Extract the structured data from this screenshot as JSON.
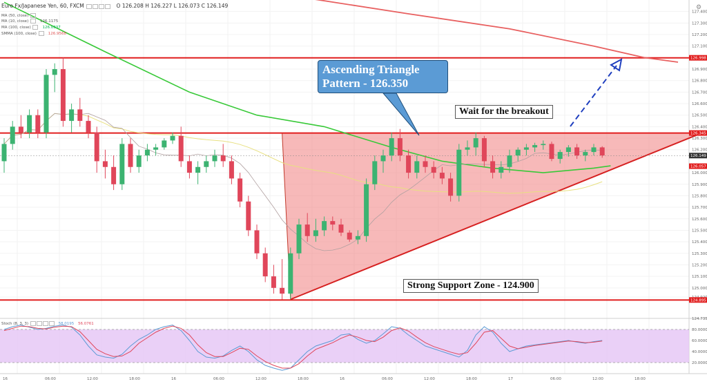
{
  "header": {
    "symbol_line": "Euro Fx/Japanese Yen, 60, FXCM",
    "ohlc": "O 126.208  H 126.227  L 126.073  C 126.149"
  },
  "legend": [
    {
      "label": "MA (50, close)",
      "value": "",
      "color": "#aaaaaa"
    },
    {
      "label": "MA (10, close)",
      "value": "126.1175",
      "color": "#9e9e9e"
    },
    {
      "label": "MA (100, close)",
      "value": "126.0337",
      "color": "#00b050"
    },
    {
      "label": "SMMA (100, close)",
      "value": "126.9568",
      "color": "#e05555"
    }
  ],
  "oscillator_header": {
    "label": "Stoch (8, 3, 3)",
    "k": "58.0195",
    "d": "56.0761"
  },
  "annotations": {
    "callout": "Ascending Triangle Pattern - 126.350",
    "wait": "Wait for the breakout",
    "support": "Strong Support Zone - 124.900"
  },
  "icons": {
    "settings": "gear-icon"
  },
  "colors": {
    "up": "#3cb371",
    "down": "#e0465a",
    "hline": "#e11d1d",
    "triangle": "#f08080",
    "ma_green": "#38c938",
    "ma_yellow": "#e8e080",
    "ma_gray": "#b0a0a0",
    "smma_red": "#e86060",
    "stoch_fill": "#e6c8f6",
    "stoch_k": "#5b9bd5",
    "stoch_d": "#e0465a",
    "arrow": "#1f3fbf"
  },
  "chart_data": [
    {
      "type": "candlestick",
      "title": "Euro Fx/Japanese Yen, 60, FXCM",
      "ylim": [
        124.735,
        127.5
      ],
      "y_ticks": [
        127.4,
        127.3,
        127.2,
        127.1,
        126.9,
        126.8,
        126.7,
        126.6,
        126.5,
        126.4,
        126.3,
        126.2,
        126.0,
        125.9,
        125.8,
        125.7,
        125.6,
        125.5,
        125.4,
        125.3,
        125.2,
        125.1,
        125.0,
        124.92,
        124.735
      ],
      "x_ticks": [
        "16",
        "06:00",
        "12:00",
        "18:00",
        "16",
        "06:00",
        "12:00",
        "18:00",
        "16",
        "06:00",
        "12:00",
        "18:00",
        "17",
        "06:00",
        "12:00",
        "18:00"
      ],
      "price_tags": [
        {
          "text": "126.998",
          "y": 126.998,
          "color": "#e11d1d"
        },
        {
          "text": "126.345",
          "y": 126.345,
          "color": "#e11d1d"
        },
        {
          "text": "126.149",
          "y": 126.149,
          "color": "#333333"
        },
        {
          "text": "126.057",
          "y": 126.057,
          "color": "#e11d1d"
        },
        {
          "text": "124.895",
          "y": 124.895,
          "color": "#e11d1d"
        }
      ],
      "levels": [
        126.998,
        126.345,
        124.895
      ],
      "triangle": {
        "top": 126.345,
        "apex_bar": 82,
        "low_bar": 34,
        "low": 124.9
      },
      "candles": [
        [
          126.1,
          126.3,
          126.0,
          126.25
        ],
        [
          126.25,
          126.45,
          126.2,
          126.4
        ],
        [
          126.4,
          126.5,
          126.3,
          126.35
        ],
        [
          126.35,
          126.55,
          126.3,
          126.5
        ],
        [
          126.5,
          126.55,
          126.3,
          126.35
        ],
        [
          126.35,
          126.9,
          126.3,
          126.85
        ],
        [
          126.85,
          126.95,
          126.7,
          126.9
        ],
        [
          126.9,
          127.0,
          126.4,
          126.45
        ],
        [
          126.45,
          126.6,
          126.35,
          126.55
        ],
        [
          126.55,
          126.65,
          126.4,
          126.45
        ],
        [
          126.45,
          126.5,
          126.3,
          126.35
        ],
        [
          126.35,
          126.4,
          126.0,
          126.1
        ],
        [
          126.1,
          126.2,
          125.95,
          126.05
        ],
        [
          126.05,
          126.15,
          125.85,
          125.9
        ],
        [
          125.9,
          126.3,
          125.85,
          126.25
        ],
        [
          126.25,
          126.3,
          126.0,
          126.05
        ],
        [
          126.05,
          126.2,
          126.0,
          126.15
        ],
        [
          126.15,
          126.25,
          126.1,
          126.2
        ],
        [
          126.2,
          126.25,
          126.15,
          126.22
        ],
        [
          126.22,
          126.3,
          126.2,
          126.28
        ],
        [
          126.28,
          126.35,
          126.25,
          126.32
        ],
        [
          126.32,
          126.4,
          126.05,
          126.1
        ],
        [
          126.1,
          126.15,
          125.95,
          126.0
        ],
        [
          126.0,
          126.1,
          125.9,
          126.05
        ],
        [
          126.05,
          126.15,
          126.0,
          126.1
        ],
        [
          126.1,
          126.2,
          126.05,
          126.15
        ],
        [
          126.15,
          126.25,
          126.05,
          126.1
        ],
        [
          126.1,
          126.15,
          125.9,
          125.95
        ],
        [
          125.95,
          126.0,
          125.7,
          125.75
        ],
        [
          125.75,
          125.8,
          125.45,
          125.5
        ],
        [
          125.5,
          125.55,
          125.25,
          125.3
        ],
        [
          125.3,
          125.35,
          125.05,
          125.1
        ],
        [
          125.1,
          125.2,
          124.95,
          125.0
        ],
        [
          125.0,
          125.25,
          124.9,
          124.95
        ],
        [
          124.95,
          125.35,
          124.9,
          125.3
        ],
        [
          125.3,
          125.6,
          125.25,
          125.55
        ],
        [
          125.55,
          125.65,
          125.4,
          125.45
        ],
        [
          125.45,
          125.6,
          125.4,
          125.5
        ],
        [
          125.5,
          125.62,
          125.45,
          125.58
        ],
        [
          125.58,
          125.62,
          125.5,
          125.55
        ],
        [
          125.55,
          125.6,
          125.45,
          125.48
        ],
        [
          125.48,
          125.5,
          125.4,
          125.42
        ],
        [
          125.42,
          125.5,
          125.38,
          125.45
        ],
        [
          125.45,
          125.95,
          125.4,
          125.9
        ],
        [
          125.9,
          126.15,
          125.85,
          126.1
        ],
        [
          126.1,
          126.2,
          126.0,
          126.15
        ],
        [
          126.15,
          126.35,
          126.1,
          126.3
        ],
        [
          126.3,
          126.38,
          126.1,
          126.15
        ],
        [
          126.15,
          126.2,
          125.95,
          126.0
        ],
        [
          126.0,
          126.15,
          125.95,
          126.1
        ],
        [
          126.1,
          126.15,
          126.0,
          126.05
        ],
        [
          126.05,
          126.1,
          125.95,
          126.0
        ],
        [
          126.0,
          126.05,
          125.9,
          125.95
        ],
        [
          125.95,
          126.0,
          125.75,
          125.8
        ],
        [
          125.8,
          126.25,
          125.75,
          126.2
        ],
        [
          126.2,
          126.28,
          126.15,
          126.22
        ],
        [
          126.22,
          126.35,
          126.15,
          126.3
        ],
        [
          126.3,
          126.32,
          126.05,
          126.1
        ],
        [
          126.1,
          126.15,
          125.95,
          126.0
        ],
        [
          126.0,
          126.1,
          125.95,
          126.05
        ],
        [
          126.05,
          126.2,
          126.0,
          126.15
        ],
        [
          126.15,
          126.22,
          126.1,
          126.2
        ],
        [
          126.2,
          126.25,
          126.15,
          126.22
        ],
        [
          126.22,
          126.26,
          126.18,
          126.24
        ],
        [
          126.24,
          126.28,
          126.2,
          126.25
        ],
        [
          126.25,
          126.27,
          126.1,
          126.12
        ],
        [
          126.12,
          126.2,
          126.08,
          126.18
        ],
        [
          126.18,
          126.24,
          126.14,
          126.22
        ],
        [
          126.22,
          126.25,
          126.12,
          126.15
        ],
        [
          126.15,
          126.2,
          126.1,
          126.18
        ],
        [
          126.18,
          126.25,
          126.15,
          126.22
        ],
        [
          126.22,
          126.23,
          126.13,
          126.15
        ]
      ],
      "ma_green": [
        [
          0,
          127.48
        ],
        [
          12,
          127.05
        ],
        [
          22,
          126.7
        ],
        [
          30,
          126.5
        ],
        [
          38,
          126.4
        ],
        [
          46,
          126.22
        ],
        [
          52,
          126.1
        ],
        [
          58,
          126.04
        ],
        [
          64,
          126.0
        ],
        [
          70,
          126.04
        ],
        [
          72,
          126.06
        ]
      ],
      "smma_red": [
        [
          33,
          127.55
        ],
        [
          48,
          127.38
        ],
        [
          60,
          127.25
        ],
        [
          70,
          127.1
        ],
        [
          76,
          127.0
        ],
        [
          80,
          126.96
        ]
      ]
    },
    {
      "type": "line",
      "title": "Stoch (8, 3, 3)",
      "ylim": [
        0,
        100
      ],
      "y_ticks": [
        80,
        60,
        40,
        20,
        0
      ],
      "bands": [
        80,
        20
      ],
      "series": [
        {
          "name": "K",
          "values": [
            80,
            85,
            88,
            84,
            80,
            82,
            86,
            88,
            84,
            70,
            50,
            34,
            30,
            28,
            35,
            50,
            62,
            70,
            80,
            85,
            88,
            78,
            60,
            40,
            30,
            28,
            32,
            42,
            50,
            40,
            25,
            15,
            10,
            6,
            10,
            25,
            40,
            50,
            55,
            60,
            70,
            72,
            62,
            55,
            60,
            72,
            85,
            82,
            70,
            60,
            50,
            45,
            40,
            35,
            30,
            42,
            70,
            85,
            75,
            55,
            40,
            45,
            50,
            52,
            54,
            56,
            58,
            60,
            57,
            55,
            58,
            60
          ]
        },
        {
          "name": "D",
          "values": [
            78,
            82,
            86,
            85,
            82,
            81,
            84,
            86,
            85,
            76,
            60,
            44,
            36,
            31,
            32,
            40,
            55,
            65,
            75,
            82,
            86,
            82,
            70,
            52,
            38,
            31,
            31,
            38,
            46,
            44,
            32,
            22,
            15,
            10,
            10,
            18,
            32,
            44,
            50,
            56,
            64,
            70,
            66,
            60,
            58,
            66,
            78,
            83,
            77,
            66,
            56,
            49,
            44,
            39,
            35,
            38,
            55,
            75,
            78,
            64,
            50,
            45,
            48,
            51,
            53,
            55,
            57,
            59,
            58,
            56,
            57,
            59
          ]
        }
      ]
    }
  ]
}
